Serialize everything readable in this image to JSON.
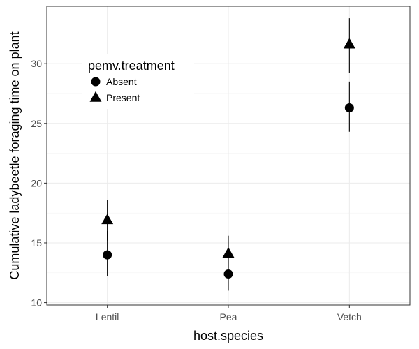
{
  "chart_data": {
    "type": "scatter",
    "xlabel": "host.species",
    "ylabel": "Cumulative ladybeetle foraging time on plant",
    "categories": [
      "Lentil",
      "Pea",
      "Vetch"
    ],
    "ylim": [
      9.8,
      34.8
    ],
    "yticks": [
      10,
      15,
      20,
      25,
      30
    ],
    "grid": true,
    "legend": {
      "title": "pemv.treatment",
      "placement": "top-left"
    },
    "series": [
      {
        "name": "Absent",
        "marker": "circle",
        "values": [
          14.0,
          12.4,
          26.3
        ],
        "lower": [
          12.2,
          11.0,
          24.3
        ],
        "upper": [
          16.0,
          13.8,
          28.5
        ]
      },
      {
        "name": "Present",
        "marker": "triangle",
        "values": [
          16.9,
          14.1,
          31.6
        ],
        "lower": [
          15.2,
          12.6,
          29.2
        ],
        "upper": [
          18.6,
          15.6,
          33.8
        ]
      }
    ]
  }
}
